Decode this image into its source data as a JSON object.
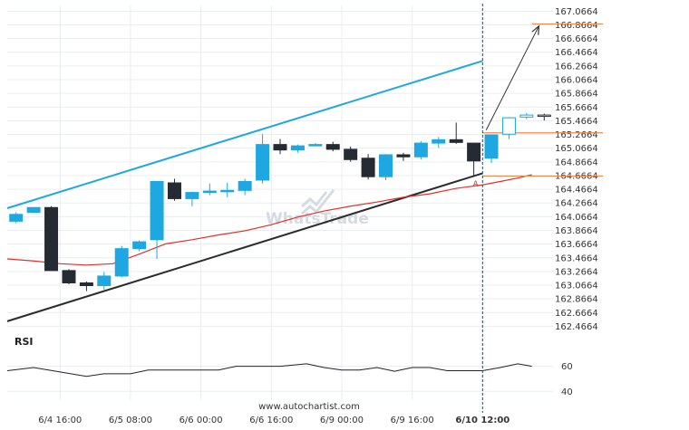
{
  "chart_data": {
    "type": "candlestick",
    "footer": "www.autochartist.com",
    "watermark": "WhatsTrade",
    "price_axis": {
      "ticks": [
        "167.0664",
        "166.8664",
        "166.6664",
        "166.4664",
        "166.2664",
        "166.0664",
        "165.8664",
        "165.6664",
        "165.4664",
        "165.2664",
        "165.0664",
        "164.8664",
        "164.6664",
        "164.4664",
        "164.2664",
        "164.0664",
        "163.8664",
        "163.6664",
        "163.4664",
        "163.2664",
        "163.0664",
        "162.8664",
        "162.6664",
        "162.4664"
      ],
      "range": [
        162.34,
        167.15
      ]
    },
    "time_axis": {
      "labels": [
        {
          "text": "6/4 16:00",
          "index": 2.5
        },
        {
          "text": "6/5 08:00",
          "index": 6.5
        },
        {
          "text": "6/6 00:00",
          "index": 10.5
        },
        {
          "text": "6/6 16:00",
          "index": 14.5
        },
        {
          "text": "6/9 00:00",
          "index": 18.5
        },
        {
          "text": "6/9 16:00",
          "index": 22.5
        },
        {
          "text": "6/10 12:00",
          "index": 26.5,
          "bold": true
        }
      ],
      "range": [
        -0.5,
        30.5
      ]
    },
    "candles": [
      {
        "o": 164.0,
        "h": 164.13,
        "l": 163.97,
        "c": 164.1
      },
      {
        "o": 164.13,
        "h": 164.2,
        "l": 164.12,
        "c": 164.2
      },
      {
        "o": 164.2,
        "h": 164.22,
        "l": 163.28,
        "c": 163.28
      },
      {
        "o": 163.28,
        "h": 163.3,
        "l": 163.08,
        "c": 163.1
      },
      {
        "o": 163.1,
        "h": 163.12,
        "l": 162.98,
        "c": 163.06
      },
      {
        "o": 163.06,
        "h": 163.26,
        "l": 163.0,
        "c": 163.2
      },
      {
        "o": 163.2,
        "h": 163.64,
        "l": 163.18,
        "c": 163.6
      },
      {
        "o": 163.6,
        "h": 163.72,
        "l": 163.56,
        "c": 163.7
      },
      {
        "o": 163.73,
        "h": 164.58,
        "l": 163.45,
        "c": 164.58
      },
      {
        "o": 164.56,
        "h": 164.62,
        "l": 164.3,
        "c": 164.33
      },
      {
        "o": 164.33,
        "h": 164.43,
        "l": 164.22,
        "c": 164.42
      },
      {
        "o": 164.42,
        "h": 164.55,
        "l": 164.38,
        "c": 164.44
      },
      {
        "o": 164.44,
        "h": 164.56,
        "l": 164.35,
        "c": 164.45
      },
      {
        "o": 164.45,
        "h": 164.62,
        "l": 164.38,
        "c": 164.58
      },
      {
        "o": 164.6,
        "h": 165.27,
        "l": 164.55,
        "c": 165.12
      },
      {
        "o": 165.12,
        "h": 165.2,
        "l": 164.98,
        "c": 165.04
      },
      {
        "o": 165.04,
        "h": 165.12,
        "l": 165.0,
        "c": 165.1
      },
      {
        "o": 165.12,
        "h": 165.14,
        "l": 165.1,
        "c": 165.12
      },
      {
        "o": 165.12,
        "h": 165.16,
        "l": 165.02,
        "c": 165.05
      },
      {
        "o": 165.05,
        "h": 165.09,
        "l": 164.87,
        "c": 164.9
      },
      {
        "o": 164.92,
        "h": 164.98,
        "l": 164.61,
        "c": 164.65
      },
      {
        "o": 164.65,
        "h": 164.98,
        "l": 164.6,
        "c": 164.97
      },
      {
        "o": 164.97,
        "h": 165.0,
        "l": 164.88,
        "c": 164.94
      },
      {
        "o": 164.94,
        "h": 165.17,
        "l": 164.9,
        "c": 165.14
      },
      {
        "o": 165.14,
        "h": 165.23,
        "l": 165.07,
        "c": 165.19
      },
      {
        "o": 165.19,
        "h": 165.44,
        "l": 165.13,
        "c": 165.15
      },
      {
        "o": 165.14,
        "h": 165.14,
        "l": 164.65,
        "c": 164.88
      },
      {
        "o": 164.92,
        "h": 165.26,
        "l": 164.85,
        "c": 165.26
      }
    ],
    "forecast_candles": [
      {
        "o": 165.27,
        "h": 165.52,
        "l": 165.2,
        "c": 165.51
      },
      {
        "o": 165.52,
        "h": 165.58,
        "l": 165.49,
        "c": 165.55
      },
      {
        "o": 165.55,
        "h": 165.57,
        "l": 165.47,
        "c": 165.53
      }
    ],
    "channel_upper": {
      "from": {
        "index": -0.5,
        "price": 164.19
      },
      "to": {
        "index": 26.5,
        "price": 166.34
      }
    },
    "channel_lower": {
      "from": {
        "index": -0.5,
        "price": 162.54
      },
      "to": {
        "index": 26.5,
        "price": 164.7
      }
    },
    "target_arrow": {
      "from": {
        "index": 26.7,
        "price": 165.33
      },
      "to": {
        "index": 29.7,
        "price": 166.85
      }
    },
    "level_lines": [
      {
        "price": 166.88,
        "from_index": 29.3
      },
      {
        "price": 165.29,
        "from_index": 26.5
      },
      {
        "price": 164.66,
        "from_index": 26.5
      }
    ],
    "moving_average": [
      [
        -0.5,
        163.45
      ],
      [
        1,
        163.42
      ],
      [
        2.5,
        163.38
      ],
      [
        4,
        163.36
      ],
      [
        5.5,
        163.38
      ],
      [
        7,
        163.52
      ],
      [
        8.5,
        163.67
      ],
      [
        10,
        163.73
      ],
      [
        11.5,
        163.8
      ],
      [
        13,
        163.86
      ],
      [
        14.5,
        163.95
      ],
      [
        16,
        164.06
      ],
      [
        17.5,
        164.15
      ],
      [
        19,
        164.22
      ],
      [
        20.5,
        164.28
      ],
      [
        22,
        164.35
      ],
      [
        23.5,
        164.4
      ],
      [
        25,
        164.48
      ],
      [
        26.5,
        164.53
      ],
      [
        27.5,
        164.58
      ],
      [
        28.5,
        164.63
      ],
      [
        29.3,
        164.68
      ]
    ],
    "annotation": {
      "text": "A",
      "index": 26.1,
      "price": 164.55
    },
    "rsi": {
      "label": "RSI",
      "ticks": [
        "60",
        "40"
      ],
      "range": [
        33,
        72
      ],
      "values": [
        [
          -0.5,
          56.5
        ],
        [
          1,
          59
        ],
        [
          2.5,
          55.5
        ],
        [
          4,
          52
        ],
        [
          5,
          54
        ],
        [
          6.5,
          54
        ],
        [
          7.5,
          57
        ],
        [
          10,
          57
        ],
        [
          11.5,
          57
        ],
        [
          12.5,
          60
        ],
        [
          15,
          60
        ],
        [
          16.5,
          62
        ],
        [
          17.5,
          59
        ],
        [
          18.5,
          57
        ],
        [
          19.5,
          57
        ],
        [
          20.5,
          59
        ],
        [
          21.5,
          56
        ],
        [
          22.5,
          59
        ],
        [
          23.5,
          59
        ],
        [
          24.5,
          56.5
        ],
        [
          26.5,
          56.5
        ],
        [
          27.5,
          59
        ],
        [
          28.5,
          62
        ],
        [
          29.3,
          60
        ]
      ]
    },
    "colors": {
      "bull": "#1ea7e1",
      "bear": "#252a33",
      "channel_upper": "#1ea7e1",
      "channel_lower": "#2b2b2b",
      "moving_average": "#e0302b",
      "levels": "#f08a4b",
      "arrow": "#333333",
      "grid": "#e9edf1",
      "cursor": "#2b4a5a"
    }
  }
}
